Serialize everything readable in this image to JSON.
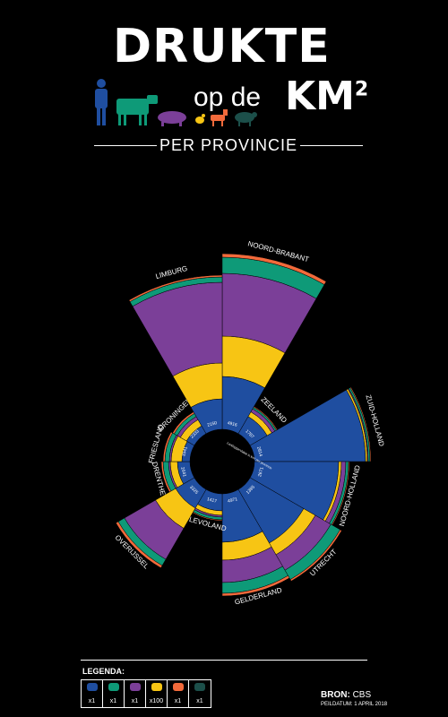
{
  "header": {
    "title": "DRUKTE",
    "subtitle_small": "op de",
    "subtitle_unit": "KM",
    "superscript": "2",
    "per_label": "PER PROVINCIE"
  },
  "colors": {
    "human": "#1f4ea0",
    "cow": "#0e9a78",
    "pig": "#7b3f98",
    "chicken": "#f7c514",
    "goat": "#f26a3b",
    "sheep": "#1c4f4a"
  },
  "chart_data": {
    "type": "polar-stacked-bar",
    "center_label": "Landoppervlakte in km² per provincie",
    "categories": [
      "Noord-Brabant",
      "Zeeland",
      "Zuid-Holland",
      "Noord-Holland",
      "Utrecht",
      "Gelderland",
      "Flevoland",
      "Overijssel",
      "Drenthe",
      "Friesland",
      "Groningen",
      "Limburg"
    ],
    "area_km2": [
      "4916",
      "1787",
      "2814",
      "2671",
      "1385",
      "4971",
      "1417",
      "3325",
      "2641",
      "3341",
      "2333",
      "2150"
    ],
    "radii": {
      "Noord-Brabant": [
        95,
        140,
        210,
        228,
        232
      ],
      "Zeeland": [
        58,
        64,
        68,
        70,
        71
      ],
      "Zuid-Holland": [
        160,
        162,
        163,
        165,
        166
      ],
      "Noord-Holland": [
        130,
        133,
        138,
        141,
        142
      ],
      "Utrecht": [
        105,
        120,
        140,
        152,
        154
      ],
      "Gelderland": [
        90,
        110,
        135,
        147,
        150
      ],
      "Flevoland": [
        55,
        60,
        62,
        65,
        66
      ],
      "Overijssel": [
        60,
        86,
        126,
        134,
        137
      ],
      "Drenthe": [
        50,
        58,
        60,
        66,
        68
      ],
      "Friesland": [
        45,
        57,
        59,
        64,
        66
      ],
      "Groningen": [
        46,
        54,
        58,
        62,
        64
      ],
      "Limburg": [
        70,
        110,
        200,
        206,
        208
      ]
    },
    "layer_order": [
      "human",
      "chicken",
      "pig",
      "cow",
      "goat"
    ]
  },
  "legend": {
    "title": "LEGENDA:",
    "items": [
      {
        "icon": "human-icon",
        "mult": "x1",
        "color": "#1f4ea0"
      },
      {
        "icon": "cow-icon",
        "mult": "x1",
        "color": "#0e9a78"
      },
      {
        "icon": "pig-icon",
        "mult": "x1",
        "color": "#7b3f98"
      },
      {
        "icon": "chicken-icon",
        "mult": "x100",
        "color": "#f7c514"
      },
      {
        "icon": "goat-icon",
        "mult": "x1",
        "color": "#f26a3b"
      },
      {
        "icon": "sheep-icon",
        "mult": "x1",
        "color": "#1c4f4a"
      }
    ]
  },
  "source": {
    "label": "BRON:",
    "value": "CBS",
    "peildatum": "PEILDATUM: 1 APRIL 2018"
  }
}
